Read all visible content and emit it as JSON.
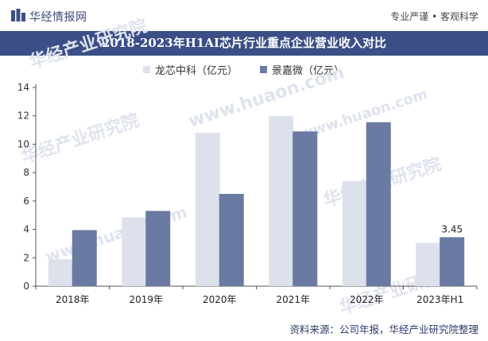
{
  "header": {
    "brand": "华经情报网",
    "tagline": "专业严谨 • 客观科学"
  },
  "chart_data": {
    "type": "bar",
    "title": "2018-2023年H1AI芯片行业重点企业营业收入对比",
    "categories": [
      "2018年",
      "2019年",
      "2020年",
      "2021年",
      "2022年",
      "2023年H1"
    ],
    "series": [
      {
        "name": "龙芯中科（亿元）",
        "color": "#dde1ec",
        "values": [
          1.9,
          4.85,
          10.8,
          12.0,
          7.4,
          3.05
        ]
      },
      {
        "name": "景嘉微（亿元）",
        "color": "#6b7aa3",
        "values": [
          3.95,
          5.3,
          6.5,
          10.9,
          11.55,
          3.45
        ]
      }
    ],
    "ylim": [
      0,
      14
    ],
    "yticks": [
      0,
      2,
      4,
      6,
      8,
      10,
      12,
      14
    ],
    "data_labels": [
      {
        "series": 1,
        "index": 5,
        "text": "3.45"
      }
    ],
    "legend": "top",
    "grid": false
  },
  "watermark": {
    "cn": "华经产业研究院",
    "en": "www.huaon.com"
  },
  "source": "资料来源：公司年报，华经产业研究院整理"
}
